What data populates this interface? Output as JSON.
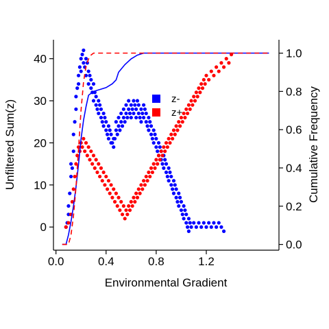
{
  "chart_data": {
    "type": "scatter",
    "xlabel": "Environmental Gradient",
    "ylabel_left": "Unfiltered Sum(z)",
    "ylabel_right": "Cumulative Frequency",
    "xlim": [
      -0.02,
      1.78
    ],
    "ylim_left": [
      -5.5,
      44.5
    ],
    "ylim_right": [
      -0.03,
      1.07
    ],
    "x_ticks": [
      0.0,
      0.4,
      0.8,
      1.2
    ],
    "x_tick_labels": [
      "0.0",
      "0.4",
      "0.8",
      "1.2"
    ],
    "y_left_ticks": [
      0,
      10,
      20,
      30,
      40
    ],
    "y_left_tick_labels": [
      "0",
      "10",
      "20",
      "30",
      "40"
    ],
    "y_right_ticks": [
      0.0,
      0.2,
      0.4,
      0.6,
      0.8,
      1.0
    ],
    "y_right_tick_labels": [
      "0.0",
      "0.2",
      "0.4",
      "0.6",
      "0.8",
      "1.0"
    ],
    "legend": {
      "placement": "center-right",
      "entries": [
        {
          "label": "z-",
          "color": "#0000ff"
        },
        {
          "label": "z+",
          "color": "#ff0000"
        }
      ]
    },
    "series": [
      {
        "name": "z-",
        "color": "#0000ff",
        "kind": "points",
        "axis": "left",
        "points": [
          [
            0.08,
            0
          ],
          [
            0.09,
            1
          ],
          [
            0.1,
            3
          ],
          [
            0.1,
            5
          ],
          [
            0.11,
            8
          ],
          [
            0.12,
            12
          ],
          [
            0.12,
            15
          ],
          [
            0.13,
            14
          ],
          [
            0.14,
            18
          ],
          [
            0.14,
            22
          ],
          [
            0.15,
            25
          ],
          [
            0.16,
            28
          ],
          [
            0.16,
            31
          ],
          [
            0.17,
            33
          ],
          [
            0.18,
            36
          ],
          [
            0.18,
            34
          ],
          [
            0.19,
            38
          ],
          [
            0.2,
            40
          ],
          [
            0.2,
            37
          ],
          [
            0.21,
            41
          ],
          [
            0.22,
            39
          ],
          [
            0.22,
            42
          ],
          [
            0.23,
            38
          ],
          [
            0.24,
            40
          ],
          [
            0.24,
            36
          ],
          [
            0.25,
            39
          ],
          [
            0.26,
            37
          ],
          [
            0.26,
            34
          ],
          [
            0.27,
            36
          ],
          [
            0.28,
            33
          ],
          [
            0.28,
            35
          ],
          [
            0.29,
            32
          ],
          [
            0.3,
            34
          ],
          [
            0.3,
            30
          ],
          [
            0.31,
            32
          ],
          [
            0.32,
            29
          ],
          [
            0.32,
            31
          ],
          [
            0.33,
            28
          ],
          [
            0.34,
            30
          ],
          [
            0.34,
            27
          ],
          [
            0.35,
            29
          ],
          [
            0.36,
            26
          ],
          [
            0.36,
            28
          ],
          [
            0.37,
            25
          ],
          [
            0.38,
            27
          ],
          [
            0.38,
            24
          ],
          [
            0.39,
            26
          ],
          [
            0.4,
            23
          ],
          [
            0.4,
            25
          ],
          [
            0.41,
            22
          ],
          [
            0.42,
            24
          ],
          [
            0.42,
            21
          ],
          [
            0.43,
            23
          ],
          [
            0.44,
            20
          ],
          [
            0.44,
            22
          ],
          [
            0.45,
            20
          ],
          [
            0.46,
            21
          ],
          [
            0.46,
            19
          ],
          [
            0.47,
            21
          ],
          [
            0.48,
            23
          ],
          [
            0.48,
            25
          ],
          [
            0.49,
            22
          ],
          [
            0.5,
            24
          ],
          [
            0.5,
            26
          ],
          [
            0.51,
            23
          ],
          [
            0.52,
            25
          ],
          [
            0.52,
            27
          ],
          [
            0.53,
            24
          ],
          [
            0.54,
            26
          ],
          [
            0.54,
            28
          ],
          [
            0.55,
            25
          ],
          [
            0.56,
            27
          ],
          [
            0.56,
            29
          ],
          [
            0.57,
            26
          ],
          [
            0.58,
            28
          ],
          [
            0.58,
            30
          ],
          [
            0.59,
            27
          ],
          [
            0.6,
            29
          ],
          [
            0.6,
            26
          ],
          [
            0.61,
            28
          ],
          [
            0.62,
            30
          ],
          [
            0.62,
            27
          ],
          [
            0.63,
            29
          ],
          [
            0.64,
            26
          ],
          [
            0.64,
            28
          ],
          [
            0.65,
            30
          ],
          [
            0.66,
            27
          ],
          [
            0.66,
            29
          ],
          [
            0.67,
            26
          ],
          [
            0.68,
            28
          ],
          [
            0.68,
            25
          ],
          [
            0.69,
            27
          ],
          [
            0.7,
            29
          ],
          [
            0.7,
            26
          ],
          [
            0.71,
            28
          ],
          [
            0.72,
            25
          ],
          [
            0.72,
            27
          ],
          [
            0.73,
            24
          ],
          [
            0.74,
            26
          ],
          [
            0.74,
            23
          ],
          [
            0.75,
            25
          ],
          [
            0.76,
            22
          ],
          [
            0.76,
            24
          ],
          [
            0.77,
            21
          ],
          [
            0.78,
            23
          ],
          [
            0.78,
            20
          ],
          [
            0.79,
            22
          ],
          [
            0.8,
            19
          ],
          [
            0.8,
            21
          ],
          [
            0.81,
            18
          ],
          [
            0.82,
            20
          ],
          [
            0.82,
            17
          ],
          [
            0.83,
            19
          ],
          [
            0.84,
            16
          ],
          [
            0.84,
            18
          ],
          [
            0.85,
            15
          ],
          [
            0.86,
            17
          ],
          [
            0.86,
            14
          ],
          [
            0.87,
            16
          ],
          [
            0.88,
            13
          ],
          [
            0.88,
            15
          ],
          [
            0.89,
            12
          ],
          [
            0.9,
            14
          ],
          [
            0.9,
            11
          ],
          [
            0.91,
            13
          ],
          [
            0.92,
            10
          ],
          [
            0.92,
            12
          ],
          [
            0.93,
            9
          ],
          [
            0.94,
            11
          ],
          [
            0.94,
            8
          ],
          [
            0.95,
            10
          ],
          [
            0.96,
            7
          ],
          [
            0.96,
            9
          ],
          [
            0.97,
            6
          ],
          [
            0.98,
            8
          ],
          [
            0.98,
            5
          ],
          [
            0.99,
            7
          ],
          [
            1.0,
            4
          ],
          [
            1.0,
            6
          ],
          [
            1.01,
            3
          ],
          [
            1.02,
            5
          ],
          [
            1.02,
            2
          ],
          [
            1.03,
            4
          ],
          [
            1.04,
            1
          ],
          [
            1.04,
            3
          ],
          [
            1.05,
            0
          ],
          [
            1.06,
            2
          ],
          [
            1.06,
            -1
          ],
          [
            1.07,
            1
          ],
          [
            1.08,
            0
          ],
          [
            1.1,
            1
          ],
          [
            1.12,
            0
          ],
          [
            1.14,
            1
          ],
          [
            1.16,
            0
          ],
          [
            1.18,
            1
          ],
          [
            1.2,
            0
          ],
          [
            1.22,
            1
          ],
          [
            1.24,
            0
          ],
          [
            1.26,
            1
          ],
          [
            1.28,
            0
          ],
          [
            1.3,
            1
          ],
          [
            1.32,
            0
          ],
          [
            1.34,
            -1
          ]
        ]
      },
      {
        "name": "z+",
        "color": "#ff0000",
        "kind": "points",
        "axis": "left",
        "points": [
          [
            0.08,
            0
          ],
          [
            0.1,
            1
          ],
          [
            0.12,
            3
          ],
          [
            0.13,
            6
          ],
          [
            0.14,
            9
          ],
          [
            0.15,
            12
          ],
          [
            0.16,
            15
          ],
          [
            0.17,
            17
          ],
          [
            0.18,
            19
          ],
          [
            0.19,
            18
          ],
          [
            0.2,
            20
          ],
          [
            0.21,
            19
          ],
          [
            0.22,
            21
          ],
          [
            0.23,
            18
          ],
          [
            0.24,
            20
          ],
          [
            0.25,
            17
          ],
          [
            0.26,
            19
          ],
          [
            0.27,
            16
          ],
          [
            0.28,
            18
          ],
          [
            0.29,
            15
          ],
          [
            0.3,
            17
          ],
          [
            0.31,
            14
          ],
          [
            0.32,
            16
          ],
          [
            0.33,
            13
          ],
          [
            0.34,
            15
          ],
          [
            0.35,
            12
          ],
          [
            0.36,
            14
          ],
          [
            0.37,
            11
          ],
          [
            0.38,
            13
          ],
          [
            0.39,
            10
          ],
          [
            0.4,
            12
          ],
          [
            0.41,
            9
          ],
          [
            0.42,
            11
          ],
          [
            0.43,
            8
          ],
          [
            0.44,
            10
          ],
          [
            0.45,
            7
          ],
          [
            0.46,
            9
          ],
          [
            0.47,
            6
          ],
          [
            0.48,
            8
          ],
          [
            0.49,
            5
          ],
          [
            0.5,
            7
          ],
          [
            0.51,
            4
          ],
          [
            0.52,
            6
          ],
          [
            0.53,
            3
          ],
          [
            0.54,
            5
          ],
          [
            0.55,
            2
          ],
          [
            0.56,
            4
          ],
          [
            0.57,
            3
          ],
          [
            0.58,
            5
          ],
          [
            0.59,
            4
          ],
          [
            0.6,
            6
          ],
          [
            0.61,
            5
          ],
          [
            0.62,
            7
          ],
          [
            0.63,
            6
          ],
          [
            0.64,
            8
          ],
          [
            0.65,
            7
          ],
          [
            0.66,
            9
          ],
          [
            0.67,
            8
          ],
          [
            0.68,
            10
          ],
          [
            0.69,
            9
          ],
          [
            0.7,
            11
          ],
          [
            0.71,
            10
          ],
          [
            0.72,
            12
          ],
          [
            0.73,
            11
          ],
          [
            0.74,
            13
          ],
          [
            0.75,
            12
          ],
          [
            0.76,
            14
          ],
          [
            0.77,
            13
          ],
          [
            0.78,
            15
          ],
          [
            0.79,
            14
          ],
          [
            0.8,
            16
          ],
          [
            0.81,
            15
          ],
          [
            0.82,
            17
          ],
          [
            0.83,
            16
          ],
          [
            0.84,
            18
          ],
          [
            0.85,
            17
          ],
          [
            0.86,
            19
          ],
          [
            0.87,
            18
          ],
          [
            0.88,
            20
          ],
          [
            0.89,
            19
          ],
          [
            0.9,
            21
          ],
          [
            0.91,
            20
          ],
          [
            0.92,
            22
          ],
          [
            0.93,
            21
          ],
          [
            0.94,
            23
          ],
          [
            0.95,
            22
          ],
          [
            0.96,
            24
          ],
          [
            0.97,
            23
          ],
          [
            0.98,
            25
          ],
          [
            0.99,
            24
          ],
          [
            1.0,
            26
          ],
          [
            1.01,
            25
          ],
          [
            1.02,
            27
          ],
          [
            1.03,
            26
          ],
          [
            1.04,
            28
          ],
          [
            1.05,
            27
          ],
          [
            1.06,
            29
          ],
          [
            1.07,
            28
          ],
          [
            1.08,
            30
          ],
          [
            1.09,
            29
          ],
          [
            1.1,
            31
          ],
          [
            1.11,
            30
          ],
          [
            1.12,
            32
          ],
          [
            1.13,
            31
          ],
          [
            1.14,
            33
          ],
          [
            1.15,
            32
          ],
          [
            1.16,
            34
          ],
          [
            1.17,
            33
          ],
          [
            1.18,
            35
          ],
          [
            1.19,
            34
          ],
          [
            1.2,
            36
          ],
          [
            1.22,
            35
          ],
          [
            1.24,
            37
          ],
          [
            1.26,
            36
          ],
          [
            1.28,
            38
          ],
          [
            1.3,
            37
          ],
          [
            1.32,
            39
          ],
          [
            1.34,
            38
          ],
          [
            1.36,
            40
          ],
          [
            1.38,
            39
          ],
          [
            1.4,
            41
          ]
        ]
      }
    ]
  }
}
